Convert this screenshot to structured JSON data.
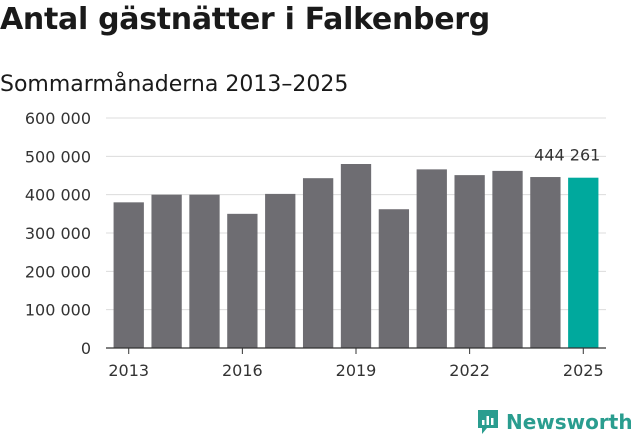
{
  "chart_data": {
    "type": "bar",
    "title": "Antal gästnätter i Falkenberg",
    "subtitle": "Sommarmånaderna 2013–2025",
    "xlabel": "",
    "ylabel": "",
    "categories": [
      "2013",
      "2014",
      "2015",
      "2016",
      "2017",
      "2018",
      "2019",
      "2020",
      "2021",
      "2022",
      "2023",
      "2024",
      "2025"
    ],
    "values": [
      380000,
      400000,
      400000,
      350000,
      402000,
      443000,
      480000,
      362000,
      466000,
      451000,
      462000,
      446000,
      444261
    ],
    "ylim": [
      0,
      600000
    ],
    "y_ticks": [
      "0",
      "100 000",
      "200 000",
      "300 000",
      "400 000",
      "500 000",
      "600 000"
    ],
    "x_tick_labels": [
      "2013",
      "2016",
      "2019",
      "2022",
      "2025"
    ],
    "data_labels": [
      {
        "category": "2025",
        "text": "444 261"
      }
    ],
    "grid": true,
    "bar_color": "#6e6d72",
    "highlight_color": "#00a99d",
    "highlight_category": "2025"
  },
  "brand": {
    "name": "Newsworthy",
    "icon": "newsworthy-logo-icon",
    "color": "#2a9d8f"
  }
}
